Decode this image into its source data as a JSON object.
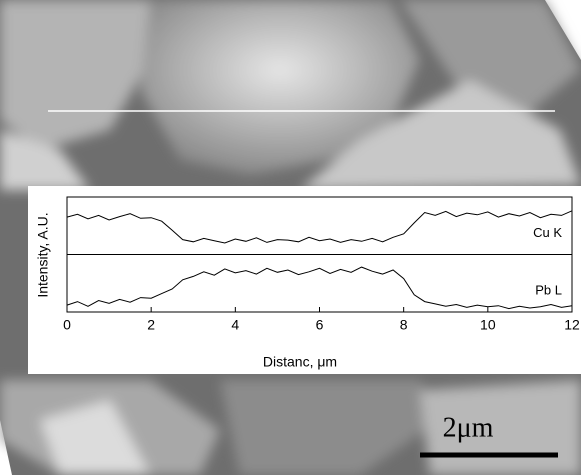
{
  "chart_data": {
    "type": "line",
    "xlabel": "Distanc, μm",
    "ylabel": "Intensity, A.U.",
    "x": [
      0,
      0.25,
      0.5,
      0.75,
      1,
      1.25,
      1.5,
      1.75,
      2,
      2.25,
      2.5,
      2.75,
      3,
      3.25,
      3.5,
      3.75,
      4,
      4.25,
      4.5,
      4.75,
      5,
      5.25,
      5.5,
      5.75,
      6,
      6.25,
      6.5,
      6.75,
      7,
      7.25,
      7.5,
      7.75,
      8,
      8.25,
      8.5,
      8.75,
      9,
      9.25,
      9.5,
      9.75,
      10,
      10.25,
      10.5,
      10.75,
      11,
      11.25,
      11.5,
      11.75,
      12
    ],
    "xlim": [
      0,
      12
    ],
    "xticks": [
      0,
      2,
      4,
      6,
      8,
      10,
      12
    ],
    "ylim": [
      0,
      10
    ],
    "series": [
      {
        "name": "Cu K",
        "color": "#000000",
        "values": [
          6.5,
          7.0,
          6.2,
          6.8,
          6.0,
          6.6,
          7.1,
          6.3,
          6.4,
          5.8,
          4.2,
          2.6,
          2.2,
          2.8,
          2.4,
          2.0,
          2.7,
          2.3,
          2.9,
          2.1,
          2.6,
          2.5,
          2.2,
          3.0,
          2.4,
          2.7,
          2.1,
          2.6,
          2.3,
          2.8,
          2.2,
          3.0,
          3.6,
          5.5,
          7.3,
          6.8,
          7.5,
          6.6,
          7.2,
          6.9,
          7.4,
          6.5,
          7.1,
          6.7,
          7.3,
          6.4,
          7.0,
          6.8,
          7.6
        ]
      },
      {
        "name": "Pb L",
        "color": "#000000",
        "values": [
          1.2,
          1.8,
          1.0,
          2.0,
          1.5,
          2.2,
          1.7,
          2.5,
          2.4,
          3.2,
          4.0,
          5.6,
          6.2,
          7.0,
          6.4,
          7.5,
          6.8,
          7.2,
          6.6,
          7.6,
          6.9,
          7.3,
          6.5,
          7.0,
          7.6,
          6.7,
          7.4,
          6.9,
          7.8,
          7.1,
          6.6,
          7.3,
          5.8,
          3.0,
          1.8,
          1.4,
          1.0,
          1.3,
          0.8,
          1.2,
          0.9,
          1.1,
          0.6,
          1.0,
          0.7,
          0.9,
          1.3,
          0.8,
          1.1
        ]
      }
    ]
  },
  "scale_bar": "2μm"
}
